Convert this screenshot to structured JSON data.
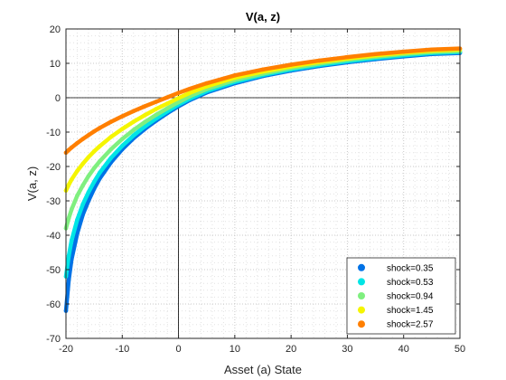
{
  "chart_data": {
    "type": "line",
    "title": "V(a, z)",
    "xlabel": "Asset (a) State",
    "ylabel": "V(a, z)",
    "xlim": [
      -20,
      50
    ],
    "ylim": [
      -70,
      20
    ],
    "xticks": [
      -20,
      -10,
      0,
      10,
      20,
      30,
      40,
      50
    ],
    "yticks": [
      -70,
      -60,
      -50,
      -40,
      -30,
      -20,
      -10,
      0,
      10,
      20
    ],
    "grid": "on (major and minor dotted)",
    "reference_lines": {
      "x": 0,
      "y": 0
    },
    "legend_position": "bottom-right",
    "x": [
      -20,
      -19.5,
      -19,
      -18,
      -17,
      -16,
      -15,
      -14,
      -12,
      -10,
      -8,
      -6,
      -4,
      -2,
      0,
      2,
      5,
      10,
      15,
      20,
      25,
      30,
      35,
      40,
      45,
      50
    ],
    "series": [
      {
        "name": "shock=0.35",
        "color": "#0072e6",
        "values": [
          -62,
          -53,
          -47,
          -39.5,
          -34,
          -30,
          -26.5,
          -23.5,
          -18.8,
          -15.0,
          -11.8,
          -9.1,
          -6.7,
          -4.5,
          -2.5,
          -0.7,
          1.5,
          4.2,
          6.3,
          7.9,
          9.2,
          10.3,
          11.2,
          12.0,
          12.7,
          13.0
        ]
      },
      {
        "name": "shock=0.53",
        "color": "#00e5e5",
        "values": [
          -52,
          -46,
          -41.5,
          -35.5,
          -31,
          -27.5,
          -24.5,
          -21.8,
          -17.5,
          -14.0,
          -11.0,
          -8.4,
          -6.1,
          -4.0,
          -2.0,
          -0.3,
          1.9,
          4.6,
          6.6,
          8.2,
          9.5,
          10.6,
          11.5,
          12.3,
          13.0,
          13.3
        ]
      },
      {
        "name": "shock=0.94",
        "color": "#7fef7f",
        "values": [
          -38,
          -35,
          -32.5,
          -28.5,
          -25.5,
          -22.8,
          -20.5,
          -18.5,
          -15.0,
          -12.0,
          -9.4,
          -7.1,
          -5.0,
          -3.1,
          -1.3,
          0.4,
          2.5,
          5.1,
          7.0,
          8.6,
          9.9,
          11.0,
          11.9,
          12.7,
          13.3,
          13.6
        ]
      },
      {
        "name": "shock=1.45",
        "color": "#f5f500",
        "values": [
          -27,
          -25.3,
          -23.8,
          -21.3,
          -19.2,
          -17.3,
          -15.6,
          -14.1,
          -11.4,
          -9.1,
          -7.0,
          -5.1,
          -3.3,
          -1.7,
          -0.1,
          1.4,
          3.3,
          5.8,
          7.6,
          9.1,
          10.4,
          11.4,
          12.3,
          13.1,
          13.7,
          14.0
        ]
      },
      {
        "name": "shock=2.57",
        "color": "#ff7f00",
        "values": [
          -16,
          -15.2,
          -14.5,
          -13.2,
          -12.0,
          -10.9,
          -9.8,
          -8.8,
          -7.0,
          -5.4,
          -3.9,
          -2.5,
          -1.2,
          0.1,
          1.4,
          2.6,
          4.2,
          6.5,
          8.2,
          9.6,
          10.8,
          11.8,
          12.7,
          13.4,
          14.0,
          14.3
        ]
      }
    ]
  }
}
